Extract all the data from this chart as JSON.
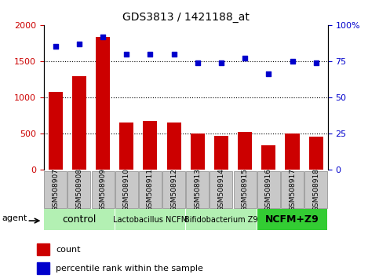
{
  "title": "GDS3813 / 1421188_at",
  "samples": [
    "GSM508907",
    "GSM508908",
    "GSM508909",
    "GSM508910",
    "GSM508911",
    "GSM508912",
    "GSM508913",
    "GSM508914",
    "GSM508915",
    "GSM508916",
    "GSM508917",
    "GSM508918"
  ],
  "counts": [
    1080,
    1290,
    1840,
    650,
    670,
    650,
    495,
    470,
    520,
    340,
    495,
    455
  ],
  "percentile_ranks": [
    85,
    87,
    92,
    80,
    80,
    80,
    74,
    74,
    77,
    66,
    75,
    74
  ],
  "groups": [
    {
      "label": "control",
      "start": 0,
      "end": 3,
      "color": "#b3f0b3",
      "fontsize": 9,
      "bold": false
    },
    {
      "label": "Lactobacillus NCFM",
      "start": 3,
      "end": 6,
      "color": "#b3f0b3",
      "fontsize": 7,
      "bold": false
    },
    {
      "label": "Bifidobacterium Z9",
      "start": 6,
      "end": 9,
      "color": "#b3f0b3",
      "fontsize": 7,
      "bold": false
    },
    {
      "label": "NCFM+Z9",
      "start": 9,
      "end": 12,
      "color": "#33cc33",
      "fontsize": 9,
      "bold": true
    }
  ],
  "bar_color": "#cc0000",
  "dot_color": "#0000cc",
  "left_ylim": [
    0,
    2000
  ],
  "right_ylim": [
    0,
    100
  ],
  "left_yticks": [
    0,
    500,
    1000,
    1500,
    2000
  ],
  "right_yticks": [
    0,
    25,
    50,
    75,
    100
  ],
  "right_yticklabels": [
    "0",
    "25",
    "50",
    "75",
    "100%"
  ],
  "grid_values": [
    500,
    1000,
    1500
  ],
  "agent_label": "agent",
  "background_color": "#ffffff",
  "sample_box_color": "#c8c8c8"
}
